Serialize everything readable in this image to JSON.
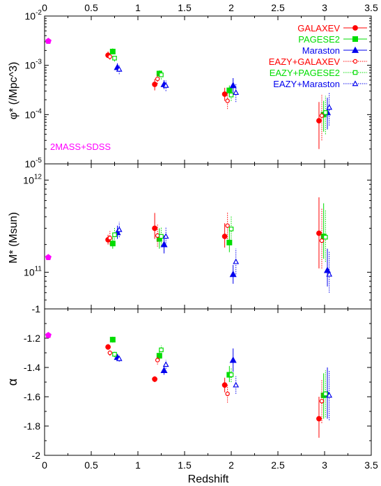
{
  "chart_data": {
    "type": "scatter",
    "x_axis": {
      "label": "Redshift",
      "range": [
        0,
        3.5
      ],
      "ticks": [
        0,
        0.5,
        1,
        1.5,
        2,
        2.5,
        3,
        3.5
      ],
      "tick_labels": [
        "0",
        "0.5",
        "1",
        "1.5",
        "2",
        "2.5",
        "3",
        "3.5"
      ],
      "mirrored_top": true
    },
    "series_styles": [
      {
        "name": "GALAXEV",
        "color": "#ff0000",
        "marker": "circle",
        "filled": true,
        "line": "solid"
      },
      {
        "name": "PAGESE2",
        "color": "#00dd00",
        "marker": "square",
        "filled": true,
        "line": "solid"
      },
      {
        "name": "Maraston",
        "color": "#0000ee",
        "marker": "triangle",
        "filled": true,
        "line": "solid"
      },
      {
        "name": "EAZY+GALAXEV",
        "color": "#ff0000",
        "marker": "circle",
        "filled": false,
        "line": "dotted"
      },
      {
        "name": "EAZY+PAGESE2",
        "color": "#00dd00",
        "marker": "square",
        "filled": false,
        "line": "dotted"
      },
      {
        "name": "EAZY+Maraston",
        "color": "#0000ee",
        "marker": "triangle",
        "filled": false,
        "line": "dotted"
      }
    ],
    "legend_position": "top-right of top panel",
    "reference_color": "#ff00ff",
    "panels": [
      {
        "ylabel": "φ* (/Mpc^3)",
        "yscale": "log",
        "ylim": [
          1e-05,
          0.01
        ],
        "yticks": [
          {
            "value": 1e-05,
            "base": "10",
            "exp": "-5"
          },
          {
            "value": 0.0001,
            "base": "10",
            "exp": "-4"
          },
          {
            "value": 0.001,
            "base": "10",
            "exp": "-3"
          },
          {
            "value": 0.01,
            "base": "10",
            "exp": "-2"
          }
        ],
        "reference": {
          "label": "2MASS+SDSS",
          "x": 0.04,
          "y": 0.0031
        },
        "series": [
          {
            "name": "GALAXEV",
            "points": [
              {
                "x": 0.68,
                "y": 0.0016,
                "lo": 0.0014,
                "hi": 0.0019
              },
              {
                "x": 1.18,
                "y": 0.00041,
                "lo": 0.00031,
                "hi": 0.00053
              },
              {
                "x": 1.93,
                "y": 0.00026,
                "lo": 0.00019,
                "hi": 0.00035
              },
              {
                "x": 2.94,
                "y": 7.5e-05,
                "lo": 2e-05,
                "hi": 0.00018
              }
            ]
          },
          {
            "name": "PAGESE2",
            "points": [
              {
                "x": 0.73,
                "y": 0.0019,
                "lo": 0.0017,
                "hi": 0.0022
              },
              {
                "x": 1.23,
                "y": 0.00068,
                "lo": 0.00058,
                "hi": 0.00079
              },
              {
                "x": 1.98,
                "y": 0.00031,
                "lo": 0.00025,
                "hi": 0.00039
              },
              {
                "x": 2.99,
                "y": 0.0001,
                "lo": 4.5e-05,
                "hi": 0.00019
              }
            ]
          },
          {
            "name": "Maraston",
            "points": [
              {
                "x": 0.78,
                "y": 0.00091,
                "lo": 0.00075,
                "hi": 0.0011
              },
              {
                "x": 1.28,
                "y": 0.00041,
                "lo": 0.00033,
                "hi": 0.0005
              },
              {
                "x": 2.02,
                "y": 0.00039,
                "lo": 0.00026,
                "hi": 0.00055
              },
              {
                "x": 3.03,
                "y": 0.00011,
                "lo": 5e-05,
                "hi": 0.00022
              }
            ]
          },
          {
            "name": "EAZY+GALAXEV",
            "points": [
              {
                "x": 0.7,
                "y": 0.0015,
                "lo": 0.0013,
                "hi": 0.0017
              },
              {
                "x": 1.21,
                "y": 0.00053,
                "lo": 0.00042,
                "hi": 0.00066
              },
              {
                "x": 1.96,
                "y": 0.00019,
                "lo": 0.00013,
                "hi": 0.00027
              },
              {
                "x": 2.97,
                "y": 9.5e-05,
                "lo": 3e-05,
                "hi": 0.00026
              }
            ]
          },
          {
            "name": "EAZY+PAGESE2",
            "points": [
              {
                "x": 0.75,
                "y": 0.0014,
                "lo": 0.0012,
                "hi": 0.0016
              },
              {
                "x": 1.25,
                "y": 0.00064,
                "lo": 0.00052,
                "hi": 0.00078
              },
              {
                "x": 2.0,
                "y": 0.00025,
                "lo": 0.00019,
                "hi": 0.00034
              },
              {
                "x": 3.01,
                "y": 0.00011,
                "lo": 4e-05,
                "hi": 0.00024
              }
            ]
          },
          {
            "name": "EAZY+Maraston",
            "points": [
              {
                "x": 0.8,
                "y": 0.00083,
                "lo": 0.00066,
                "hi": 0.001
              },
              {
                "x": 1.3,
                "y": 0.00039,
                "lo": 0.0003,
                "hi": 0.0005
              },
              {
                "x": 2.05,
                "y": 0.00028,
                "lo": 0.00018,
                "hi": 0.00042
              },
              {
                "x": 3.05,
                "y": 0.00014,
                "lo": 6e-05,
                "hi": 0.00028
              }
            ]
          }
        ]
      },
      {
        "ylabel": "M* (Msun)",
        "yscale": "log",
        "ylim": [
          40000000000,
          1500000000000
        ],
        "yticks": [
          {
            "value": 100000000000,
            "base": "10",
            "exp": "11"
          },
          {
            "value": 1000000000000,
            "base": "10",
            "exp": "12"
          }
        ],
        "reference": {
          "x": 0.04,
          "y": 145000000000
        },
        "series": [
          {
            "name": "GALAXEV",
            "points": [
              {
                "x": 0.68,
                "y": 225000000000,
                "lo": 200000000000,
                "hi": 255000000000
              },
              {
                "x": 1.18,
                "y": 300000000000,
                "lo": 230000000000,
                "hi": 440000000000
              },
              {
                "x": 1.93,
                "y": 245000000000,
                "lo": 185000000000,
                "hi": 340000000000
              },
              {
                "x": 2.94,
                "y": 265000000000,
                "lo": 110000000000,
                "hi": 650000000000
              }
            ]
          },
          {
            "name": "PAGESE2",
            "points": [
              {
                "x": 0.73,
                "y": 205000000000,
                "lo": 180000000000,
                "hi": 240000000000
              },
              {
                "x": 1.23,
                "y": 230000000000,
                "lo": 180000000000,
                "hi": 300000000000
              },
              {
                "x": 1.98,
                "y": 210000000000,
                "lo": 165000000000,
                "hi": 280000000000
              },
              {
                "x": 2.99,
                "y": 245000000000,
                "lo": 140000000000,
                "hi": 560000000000
              }
            ]
          },
          {
            "name": "Maraston",
            "points": [
              {
                "x": 0.78,
                "y": 270000000000,
                "lo": 230000000000,
                "hi": 320000000000
              },
              {
                "x": 1.28,
                "y": 200000000000,
                "lo": 160000000000,
                "hi": 250000000000
              },
              {
                "x": 2.02,
                "y": 95000000000,
                "lo": 75000000000,
                "hi": 120000000000
              },
              {
                "x": 3.03,
                "y": 105000000000,
                "lo": 70000000000,
                "hi": 180000000000
              }
            ]
          },
          {
            "name": "EAZY+GALAXEV",
            "points": [
              {
                "x": 0.7,
                "y": 235000000000,
                "lo": 200000000000,
                "hi": 280000000000
              },
              {
                "x": 1.21,
                "y": 250000000000,
                "lo": 190000000000,
                "hi": 330000000000
              },
              {
                "x": 1.96,
                "y": 320000000000,
                "lo": 230000000000,
                "hi": 450000000000
              },
              {
                "x": 2.97,
                "y": 220000000000,
                "lo": 110000000000,
                "hi": 500000000000
              }
            ]
          },
          {
            "name": "EAZY+PAGESE2",
            "points": [
              {
                "x": 0.75,
                "y": 255000000000,
                "lo": 215000000000,
                "hi": 305000000000
              },
              {
                "x": 1.25,
                "y": 245000000000,
                "lo": 195000000000,
                "hi": 310000000000
              },
              {
                "x": 2.0,
                "y": 295000000000,
                "lo": 220000000000,
                "hi": 410000000000
              },
              {
                "x": 3.01,
                "y": 240000000000,
                "lo": 130000000000,
                "hi": 470000000000
              }
            ]
          },
          {
            "name": "EAZY+Maraston",
            "points": [
              {
                "x": 0.8,
                "y": 290000000000,
                "lo": 240000000000,
                "hi": 350000000000
              },
              {
                "x": 1.3,
                "y": 245000000000,
                "lo": 195000000000,
                "hi": 310000000000
              },
              {
                "x": 2.05,
                "y": 130000000000,
                "lo": 95000000000,
                "hi": 180000000000
              },
              {
                "x": 3.05,
                "y": 95000000000,
                "lo": 60000000000,
                "hi": 170000000000
              }
            ]
          }
        ]
      },
      {
        "ylabel": "α",
        "yscale": "linear",
        "ylim": [
          -2,
          -1
        ],
        "yticks": [
          {
            "value": -2,
            "label": "-2"
          },
          {
            "value": -1.8,
            "label": "-1.8"
          },
          {
            "value": -1.6,
            "label": "-1.6"
          },
          {
            "value": -1.4,
            "label": "-1.4"
          },
          {
            "value": -1.2,
            "label": "-1.2"
          },
          {
            "value": -1,
            "label": "-1"
          }
        ],
        "reference": {
          "x": 0.04,
          "y": -1.18
        },
        "series": [
          {
            "name": "GALAXEV",
            "points": [
              {
                "x": 0.68,
                "y": -1.26,
                "lo": -1.28,
                "hi": -1.24
              },
              {
                "x": 1.18,
                "y": -1.48,
                "lo": -1.5,
                "hi": -1.46
              },
              {
                "x": 1.93,
                "y": -1.52,
                "lo": -1.57,
                "hi": -1.47
              },
              {
                "x": 2.94,
                "y": -1.75,
                "lo": -1.88,
                "hi": -1.6
              }
            ]
          },
          {
            "name": "PAGESE2",
            "points": [
              {
                "x": 0.73,
                "y": -1.21,
                "lo": -1.23,
                "hi": -1.19
              },
              {
                "x": 1.23,
                "y": -1.32,
                "lo": -1.35,
                "hi": -1.28
              },
              {
                "x": 1.98,
                "y": -1.45,
                "lo": -1.5,
                "hi": -1.39
              },
              {
                "x": 2.99,
                "y": -1.59,
                "lo": -1.75,
                "hi": -1.44
              }
            ]
          },
          {
            "name": "Maraston",
            "points": [
              {
                "x": 0.78,
                "y": -1.33,
                "lo": -1.35,
                "hi": -1.31
              },
              {
                "x": 1.28,
                "y": -1.42,
                "lo": -1.45,
                "hi": -1.39
              },
              {
                "x": 2.02,
                "y": -1.35,
                "lo": -1.43,
                "hi": -1.27
              },
              {
                "x": 3.03,
                "y": -1.58,
                "lo": -1.75,
                "hi": -1.4
              }
            ]
          },
          {
            "name": "EAZY+GALAXEV",
            "points": [
              {
                "x": 0.7,
                "y": -1.3,
                "lo": -1.32,
                "hi": -1.28
              },
              {
                "x": 1.21,
                "y": -1.35,
                "lo": -1.38,
                "hi": -1.32
              },
              {
                "x": 1.96,
                "y": -1.58,
                "lo": -1.64,
                "hi": -1.52
              },
              {
                "x": 2.97,
                "y": -1.63,
                "lo": -1.78,
                "hi": -1.48
              }
            ]
          },
          {
            "name": "EAZY+PAGESE2",
            "points": [
              {
                "x": 0.75,
                "y": -1.31,
                "lo": -1.33,
                "hi": -1.29
              },
              {
                "x": 1.25,
                "y": -1.28,
                "lo": -1.31,
                "hi": -1.25
              },
              {
                "x": 2.0,
                "y": -1.45,
                "lo": -1.5,
                "hi": -1.4
              },
              {
                "x": 3.01,
                "y": -1.58,
                "lo": -1.74,
                "hi": -1.42
              }
            ]
          },
          {
            "name": "EAZY+Maraston",
            "points": [
              {
                "x": 0.8,
                "y": -1.34,
                "lo": -1.36,
                "hi": -1.32
              },
              {
                "x": 1.3,
                "y": -1.38,
                "lo": -1.41,
                "hi": -1.35
              },
              {
                "x": 2.05,
                "y": -1.52,
                "lo": -1.58,
                "hi": -1.46
              },
              {
                "x": 3.05,
                "y": -1.59,
                "lo": -1.76,
                "hi": -1.42
              }
            ]
          }
        ]
      }
    ]
  }
}
